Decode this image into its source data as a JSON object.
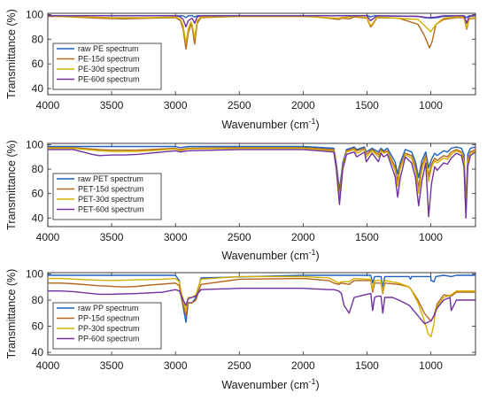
{
  "chart_data": [
    {
      "type": "line",
      "xlabel": "Wavenumber (cm",
      "xlabel_sup": "-1",
      "xlabel_close": ")",
      "ylabel": "Transmittance (%)",
      "xlim": [
        4000,
        650
      ],
      "x_reversed": true,
      "ylim": [
        35,
        101
      ],
      "xticks": [
        4000,
        3500,
        3000,
        2500,
        2000,
        1500,
        1000
      ],
      "yticks": [
        40,
        60,
        80,
        100
      ],
      "grid": false,
      "legend_position": "left",
      "series": [
        {
          "name": "raw PE spectrum",
          "color": "#1f5fbf",
          "x": [
            4000,
            3000,
            2940,
            2918,
            2900,
            2870,
            2850,
            2830,
            2800,
            2000,
            1490,
            1472,
            1460,
            1440,
            1100,
            1050,
            1000,
            950,
            900,
            740,
            719,
            700,
            650
          ],
          "y": [
            99,
            99,
            99,
            97.5,
            99,
            99,
            98,
            99,
            99,
            99,
            99,
            98,
            98.5,
            99,
            98.5,
            97.5,
            97,
            97.5,
            98.5,
            99,
            97.5,
            99,
            99
          ]
        },
        {
          "name": "PE-15d spectrum",
          "color": "#b5651d",
          "x": [
            4000,
            3900,
            3700,
            3600,
            3400,
            3200,
            3000,
            2960,
            2940,
            2918,
            2900,
            2880,
            2870,
            2850,
            2830,
            2800,
            2500,
            2000,
            1900,
            1800,
            1720,
            1700,
            1640,
            1600,
            1500,
            1472,
            1460,
            1420,
            1250,
            1100,
            1050,
            1030,
            1010,
            990,
            960,
            900,
            800,
            740,
            719,
            700,
            650
          ],
          "y": [
            98.5,
            98.5,
            97.5,
            97,
            96.5,
            97,
            97.5,
            95,
            88,
            72,
            85,
            92,
            90,
            76,
            93,
            97.5,
            98.5,
            98.5,
            98,
            97,
            96,
            97,
            96.5,
            98,
            97,
            90,
            91,
            97.5,
            97,
            92,
            83,
            78,
            73,
            78,
            92,
            96,
            97.5,
            97.5,
            88,
            96.5,
            97
          ]
        },
        {
          "name": "PE-30d spectrum",
          "color": "#d4b000",
          "x": [
            4000,
            3900,
            3700,
            3500,
            3400,
            3200,
            3000,
            2960,
            2940,
            2918,
            2900,
            2880,
            2870,
            2850,
            2830,
            2800,
            2500,
            2000,
            1900,
            1720,
            1700,
            1600,
            1500,
            1472,
            1460,
            1420,
            1100,
            1050,
            1020,
            1000,
            960,
            900,
            800,
            740,
            719,
            700,
            650
          ],
          "y": [
            99,
            98.5,
            98,
            97.5,
            97.5,
            97.5,
            98,
            96,
            91,
            77,
            88,
            94,
            92,
            81,
            95,
            98,
            98.5,
            98.5,
            98,
            97,
            97.5,
            98.5,
            97.5,
            91,
            92,
            98,
            96,
            91,
            88,
            86,
            92,
            97,
            98,
            98,
            89,
            97,
            97.5
          ]
        },
        {
          "name": "PE-60d spectrum",
          "color": "#7030a0",
          "x": [
            4000,
            3000,
            2960,
            2940,
            2918,
            2900,
            2870,
            2850,
            2830,
            2800,
            2000,
            1500,
            1472,
            1460,
            1420,
            1100,
            1020,
            960,
            900,
            740,
            719,
            700,
            650
          ],
          "y": [
            99,
            99,
            98,
            96,
            90,
            95,
            97,
            93,
            98,
            99,
            99,
            99,
            95,
            96,
            99,
            98.5,
            97.5,
            98,
            99,
            99,
            93,
            98.5,
            99
          ]
        }
      ]
    },
    {
      "type": "line",
      "xlabel": "Wavenumber (cm",
      "xlabel_sup": "-1",
      "xlabel_close": ")",
      "ylabel": "Transmittance (%)",
      "xlim": [
        4000,
        650
      ],
      "x_reversed": true,
      "ylim": [
        33,
        101
      ],
      "xticks": [
        4000,
        3500,
        3000,
        2500,
        2000,
        1500,
        1000
      ],
      "yticks": [
        40,
        60,
        80,
        100
      ],
      "grid": false,
      "legend_position": "left",
      "series": [
        {
          "name": "raw PET spectrum",
          "color": "#1f5fbf",
          "x": [
            4000,
            3000,
            2960,
            2900,
            2000,
            1760,
            1740,
            1715,
            1690,
            1660,
            1600,
            1580,
            1520,
            1505,
            1460,
            1410,
            1390,
            1370,
            1340,
            1280,
            1260,
            1240,
            1200,
            1150,
            1120,
            1095,
            1070,
            1040,
            1017,
            995,
            970,
            950,
            900,
            870,
            840,
            800,
            760,
            740,
            725,
            710,
            690,
            650
          ],
          "y": [
            98.5,
            98.5,
            97.5,
            98.5,
            98.5,
            97,
            85,
            63,
            85,
            96,
            98,
            96,
            98,
            94,
            97,
            94,
            97,
            95,
            97,
            86,
            76,
            85,
            96,
            94,
            86,
            73,
            87,
            94,
            81,
            88,
            93,
            91,
            95,
            94,
            97,
            98,
            97,
            92,
            52,
            92,
            97,
            98
          ]
        },
        {
          "name": "PET-15d spectrum",
          "color": "#b5651d",
          "x": [
            4000,
            3800,
            3600,
            3500,
            3400,
            3300,
            3200,
            3000,
            2960,
            2900,
            2500,
            2000,
            1760,
            1740,
            1715,
            1690,
            1660,
            1600,
            1580,
            1520,
            1505,
            1460,
            1410,
            1390,
            1370,
            1340,
            1280,
            1260,
            1240,
            1200,
            1150,
            1120,
            1095,
            1070,
            1040,
            1017,
            995,
            970,
            950,
            900,
            870,
            840,
            800,
            760,
            740,
            725,
            710,
            690,
            650
          ],
          "y": [
            97.5,
            97.5,
            96,
            95.5,
            95.5,
            95.5,
            96,
            97,
            96,
            97,
            97.5,
            97.5,
            96,
            83,
            58,
            83,
            95,
            97,
            95,
            97,
            92,
            96,
            92,
            96,
            94,
            95,
            82,
            70,
            83,
            93,
            91,
            82,
            65,
            83,
            91,
            74,
            84,
            89,
            87,
            91,
            90,
            94,
            96,
            94,
            88,
            49,
            88,
            94,
            96
          ]
        },
        {
          "name": "PET-30d spectrum",
          "color": "#d4b000",
          "x": [
            4000,
            3800,
            3600,
            3500,
            3400,
            3300,
            3200,
            3000,
            2960,
            2900,
            2500,
            2000,
            1760,
            1740,
            1715,
            1690,
            1660,
            1600,
            1580,
            1520,
            1505,
            1460,
            1410,
            1390,
            1370,
            1340,
            1280,
            1260,
            1240,
            1200,
            1150,
            1120,
            1095,
            1070,
            1040,
            1017,
            995,
            970,
            950,
            900,
            870,
            840,
            800,
            760,
            740,
            725,
            710,
            690,
            650
          ],
          "y": [
            97,
            97,
            95,
            94.5,
            94.5,
            94.5,
            95,
            96.5,
            95,
            96.5,
            97,
            97,
            95,
            81,
            55,
            81,
            94,
            96,
            93,
            96,
            90,
            95,
            90,
            95,
            93,
            94,
            79,
            66,
            80,
            92,
            89,
            79,
            60,
            79,
            89,
            70,
            81,
            87,
            85,
            89,
            88,
            92,
            95,
            93,
            86,
            47,
            86,
            93,
            95
          ]
        },
        {
          "name": "PET-60d spectrum",
          "color": "#7030a0",
          "x": [
            4000,
            3800,
            3650,
            3600,
            3500,
            3400,
            3300,
            3200,
            3000,
            2960,
            2900,
            2500,
            2000,
            1760,
            1740,
            1715,
            1690,
            1660,
            1600,
            1580,
            1520,
            1505,
            1460,
            1410,
            1390,
            1370,
            1340,
            1280,
            1260,
            1240,
            1200,
            1150,
            1120,
            1095,
            1070,
            1040,
            1017,
            995,
            970,
            950,
            900,
            870,
            840,
            800,
            760,
            740,
            725,
            710,
            690,
            650
          ],
          "y": [
            96,
            96,
            92,
            91,
            91.5,
            91.5,
            92,
            93,
            95,
            94,
            95,
            96,
            96,
            94,
            80,
            51,
            80,
            92,
            94,
            90,
            94,
            86,
            93,
            86,
            93,
            90,
            92,
            74,
            57,
            72,
            90,
            85,
            73,
            50,
            70,
            85,
            41,
            68,
            82,
            79,
            85,
            84,
            89,
            93,
            91,
            82,
            40,
            82,
            91,
            94
          ]
        }
      ]
    },
    {
      "type": "line",
      "xlabel": "Wavenumber (cm",
      "xlabel_sup": "-1",
      "xlabel_close": ")",
      "ylabel": "Transmittance (%)",
      "xlim": [
        4000,
        650
      ],
      "x_reversed": true,
      "ylim": [
        38,
        101
      ],
      "xticks": [
        4000,
        3500,
        3000,
        2500,
        2000,
        1500,
        1000
      ],
      "yticks": [
        40,
        60,
        80,
        100
      ],
      "grid": false,
      "legend_position": "left",
      "series": [
        {
          "name": "raw PP spectrum",
          "color": "#1f5fbf",
          "x": [
            4000,
            3000,
            2970,
            2950,
            2918,
            2900,
            2870,
            2840,
            2800,
            2000,
            1470,
            1456,
            1440,
            1390,
            1376,
            1360,
            1170,
            1160,
            1150,
            1000,
            998,
            975,
            960,
            900,
            840,
            800,
            650
          ],
          "y": [
            99,
            99,
            95,
            80,
            63,
            78,
            78,
            82,
            97,
            99,
            99,
            93,
            98,
            98,
            90,
            98,
            98,
            96,
            98,
            98,
            95,
            94,
            98,
            99,
            98,
            99,
            99
          ]
        },
        {
          "name": "PP-15d spectrum",
          "color": "#b5651d",
          "x": [
            4000,
            3900,
            3800,
            3600,
            3500,
            3400,
            3300,
            3200,
            3000,
            2970,
            2950,
            2918,
            2900,
            2870,
            2840,
            2800,
            2500,
            2000,
            1800,
            1760,
            1720,
            1700,
            1640,
            1600,
            1500,
            1470,
            1456,
            1440,
            1390,
            1376,
            1360,
            1250,
            1170,
            1160,
            1100,
            1050,
            1000,
            998,
            975,
            950,
            900,
            840,
            800,
            650
          ],
          "y": [
            93,
            93,
            92.5,
            91,
            90.5,
            90,
            90.5,
            91.5,
            93,
            91,
            80,
            68,
            78,
            78,
            80,
            92,
            96,
            96.5,
            95,
            93,
            92,
            93,
            92,
            95,
            95,
            95,
            86,
            93,
            93,
            85,
            93,
            92,
            90,
            89,
            80,
            70,
            64,
            64,
            68,
            77,
            84,
            83,
            86,
            86
          ]
        },
        {
          "name": "PP-30d spectrum",
          "color": "#d4b000",
          "x": [
            4000,
            3900,
            3700,
            3500,
            3300,
            3100,
            3000,
            2970,
            2950,
            2918,
            2900,
            2870,
            2840,
            2800,
            2500,
            2000,
            1800,
            1760,
            1720,
            1700,
            1640,
            1600,
            1500,
            1470,
            1456,
            1440,
            1390,
            1376,
            1360,
            1250,
            1170,
            1160,
            1100,
            1050,
            1020,
            1000,
            998,
            975,
            960,
            900,
            840,
            800,
            650
          ],
          "y": [
            96.5,
            96.5,
            95.5,
            95,
            95.5,
            96,
            96.5,
            94,
            84,
            72,
            82,
            82,
            84,
            96,
            98,
            98,
            97,
            95,
            93,
            94,
            94,
            96.5,
            96,
            96,
            88,
            95,
            95,
            86,
            95,
            93,
            90,
            89,
            78,
            64,
            54,
            52,
            52,
            62,
            74,
            82,
            84,
            87,
            87
          ]
        },
        {
          "name": "PP-60d spectrum",
          "color": "#7030a0",
          "x": [
            4000,
            3900,
            3800,
            3700,
            3600,
            3500,
            3300,
            3100,
            3000,
            2970,
            2950,
            2918,
            2900,
            2870,
            2840,
            2800,
            2500,
            2000,
            1800,
            1760,
            1720,
            1700,
            1680,
            1640,
            1600,
            1560,
            1520,
            1470,
            1456,
            1440,
            1420,
            1390,
            1376,
            1360,
            1300,
            1250,
            1170,
            1160,
            1100,
            1050,
            1000,
            998,
            975,
            950,
            900,
            850,
            840,
            800,
            650
          ],
          "y": [
            87,
            87,
            86.5,
            85.5,
            84.5,
            84.5,
            85,
            86,
            88,
            87,
            82,
            76,
            81,
            82,
            83,
            88,
            89,
            89,
            88,
            88,
            87,
            85,
            76,
            70,
            82,
            83,
            84,
            85,
            72,
            82,
            83,
            83,
            70,
            82,
            82,
            80,
            76,
            75,
            68,
            62,
            64,
            64,
            68,
            74,
            80,
            82,
            72,
            80,
            80
          ]
        }
      ]
    }
  ]
}
